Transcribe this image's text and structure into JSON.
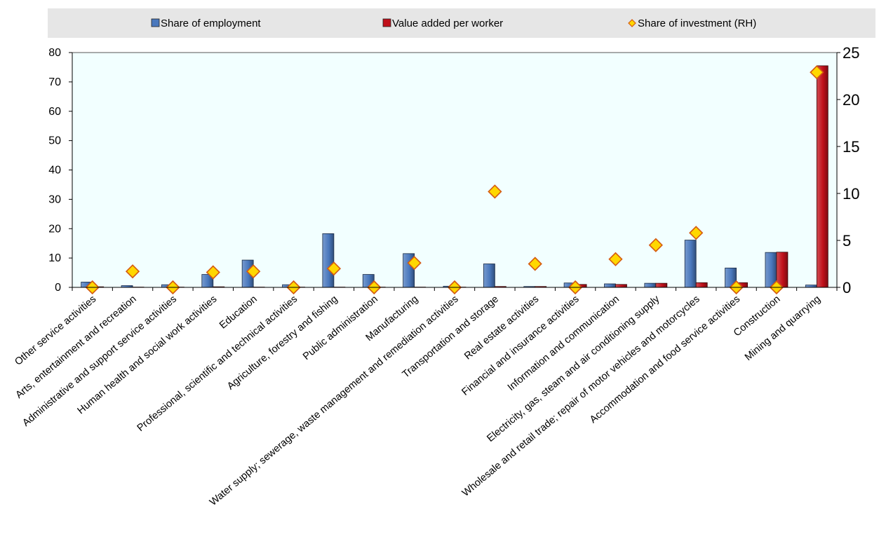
{
  "chart_data": {
    "type": "bar",
    "categories": [
      "Other service activities",
      "Arts, entertainment and recreation",
      "Administrative and support service activities",
      "Human health and social work activities",
      "Education",
      "Professional, scientific and technical activities",
      "Agriculture, forestry and fishing",
      "Public administration",
      "Manufacturing",
      "Water supply; sewerage, waste management and remediation activities",
      "Transportation and storage",
      "Real estate activities",
      "Financial and insurance activities",
      "Information and communication",
      "Electricity, gas, steam and air conditioning supply",
      "Wholesale and retail trade; repair of motor vehicles and motorcycles",
      "Accommodation and food service activities",
      "Construction",
      "Mining and quarrying"
    ],
    "series": [
      {
        "name": "Share of employment",
        "kind": "bar",
        "axis": "left",
        "color": "#4a78bd",
        "values": [
          1.8,
          0.6,
          0.9,
          4.4,
          9.3,
          0.9,
          18.3,
          4.4,
          11.5,
          0.4,
          8.0,
          0.3,
          1.5,
          1.2,
          1.4,
          16.1,
          6.6,
          11.9,
          0.8
        ]
      },
      {
        "name": "Value added per worker",
        "kind": "bar",
        "axis": "left",
        "color": "#c0101a",
        "values": [
          0.2,
          0.1,
          0.1,
          0.2,
          0.1,
          0.1,
          0.1,
          0.1,
          0.1,
          0.1,
          0.3,
          0.3,
          1.0,
          1.0,
          1.4,
          1.6,
          1.6,
          12.0,
          75.5
        ]
      },
      {
        "name": "Share of investment (RH)",
        "kind": "marker",
        "axis": "right",
        "color": "#ffd700",
        "stroke": "#d45a12",
        "values": [
          0.0,
          1.7,
          0.0,
          1.6,
          1.7,
          0.0,
          2.0,
          0.0,
          2.6,
          0.0,
          10.2,
          2.5,
          0.0,
          3.0,
          4.5,
          5.8,
          0.0,
          0.0,
          22.9
        ]
      }
    ],
    "ylim_left": [
      0,
      80
    ],
    "yticks_left": [
      0,
      10,
      20,
      30,
      40,
      50,
      60,
      70,
      80
    ],
    "ylim_right": [
      0,
      25
    ],
    "yticks_right": [
      0,
      5,
      10,
      15,
      20,
      25
    ],
    "grid": false,
    "legend_position": "top",
    "plot_background": "#f2ffff",
    "legend_background": "#e6e6e6"
  }
}
